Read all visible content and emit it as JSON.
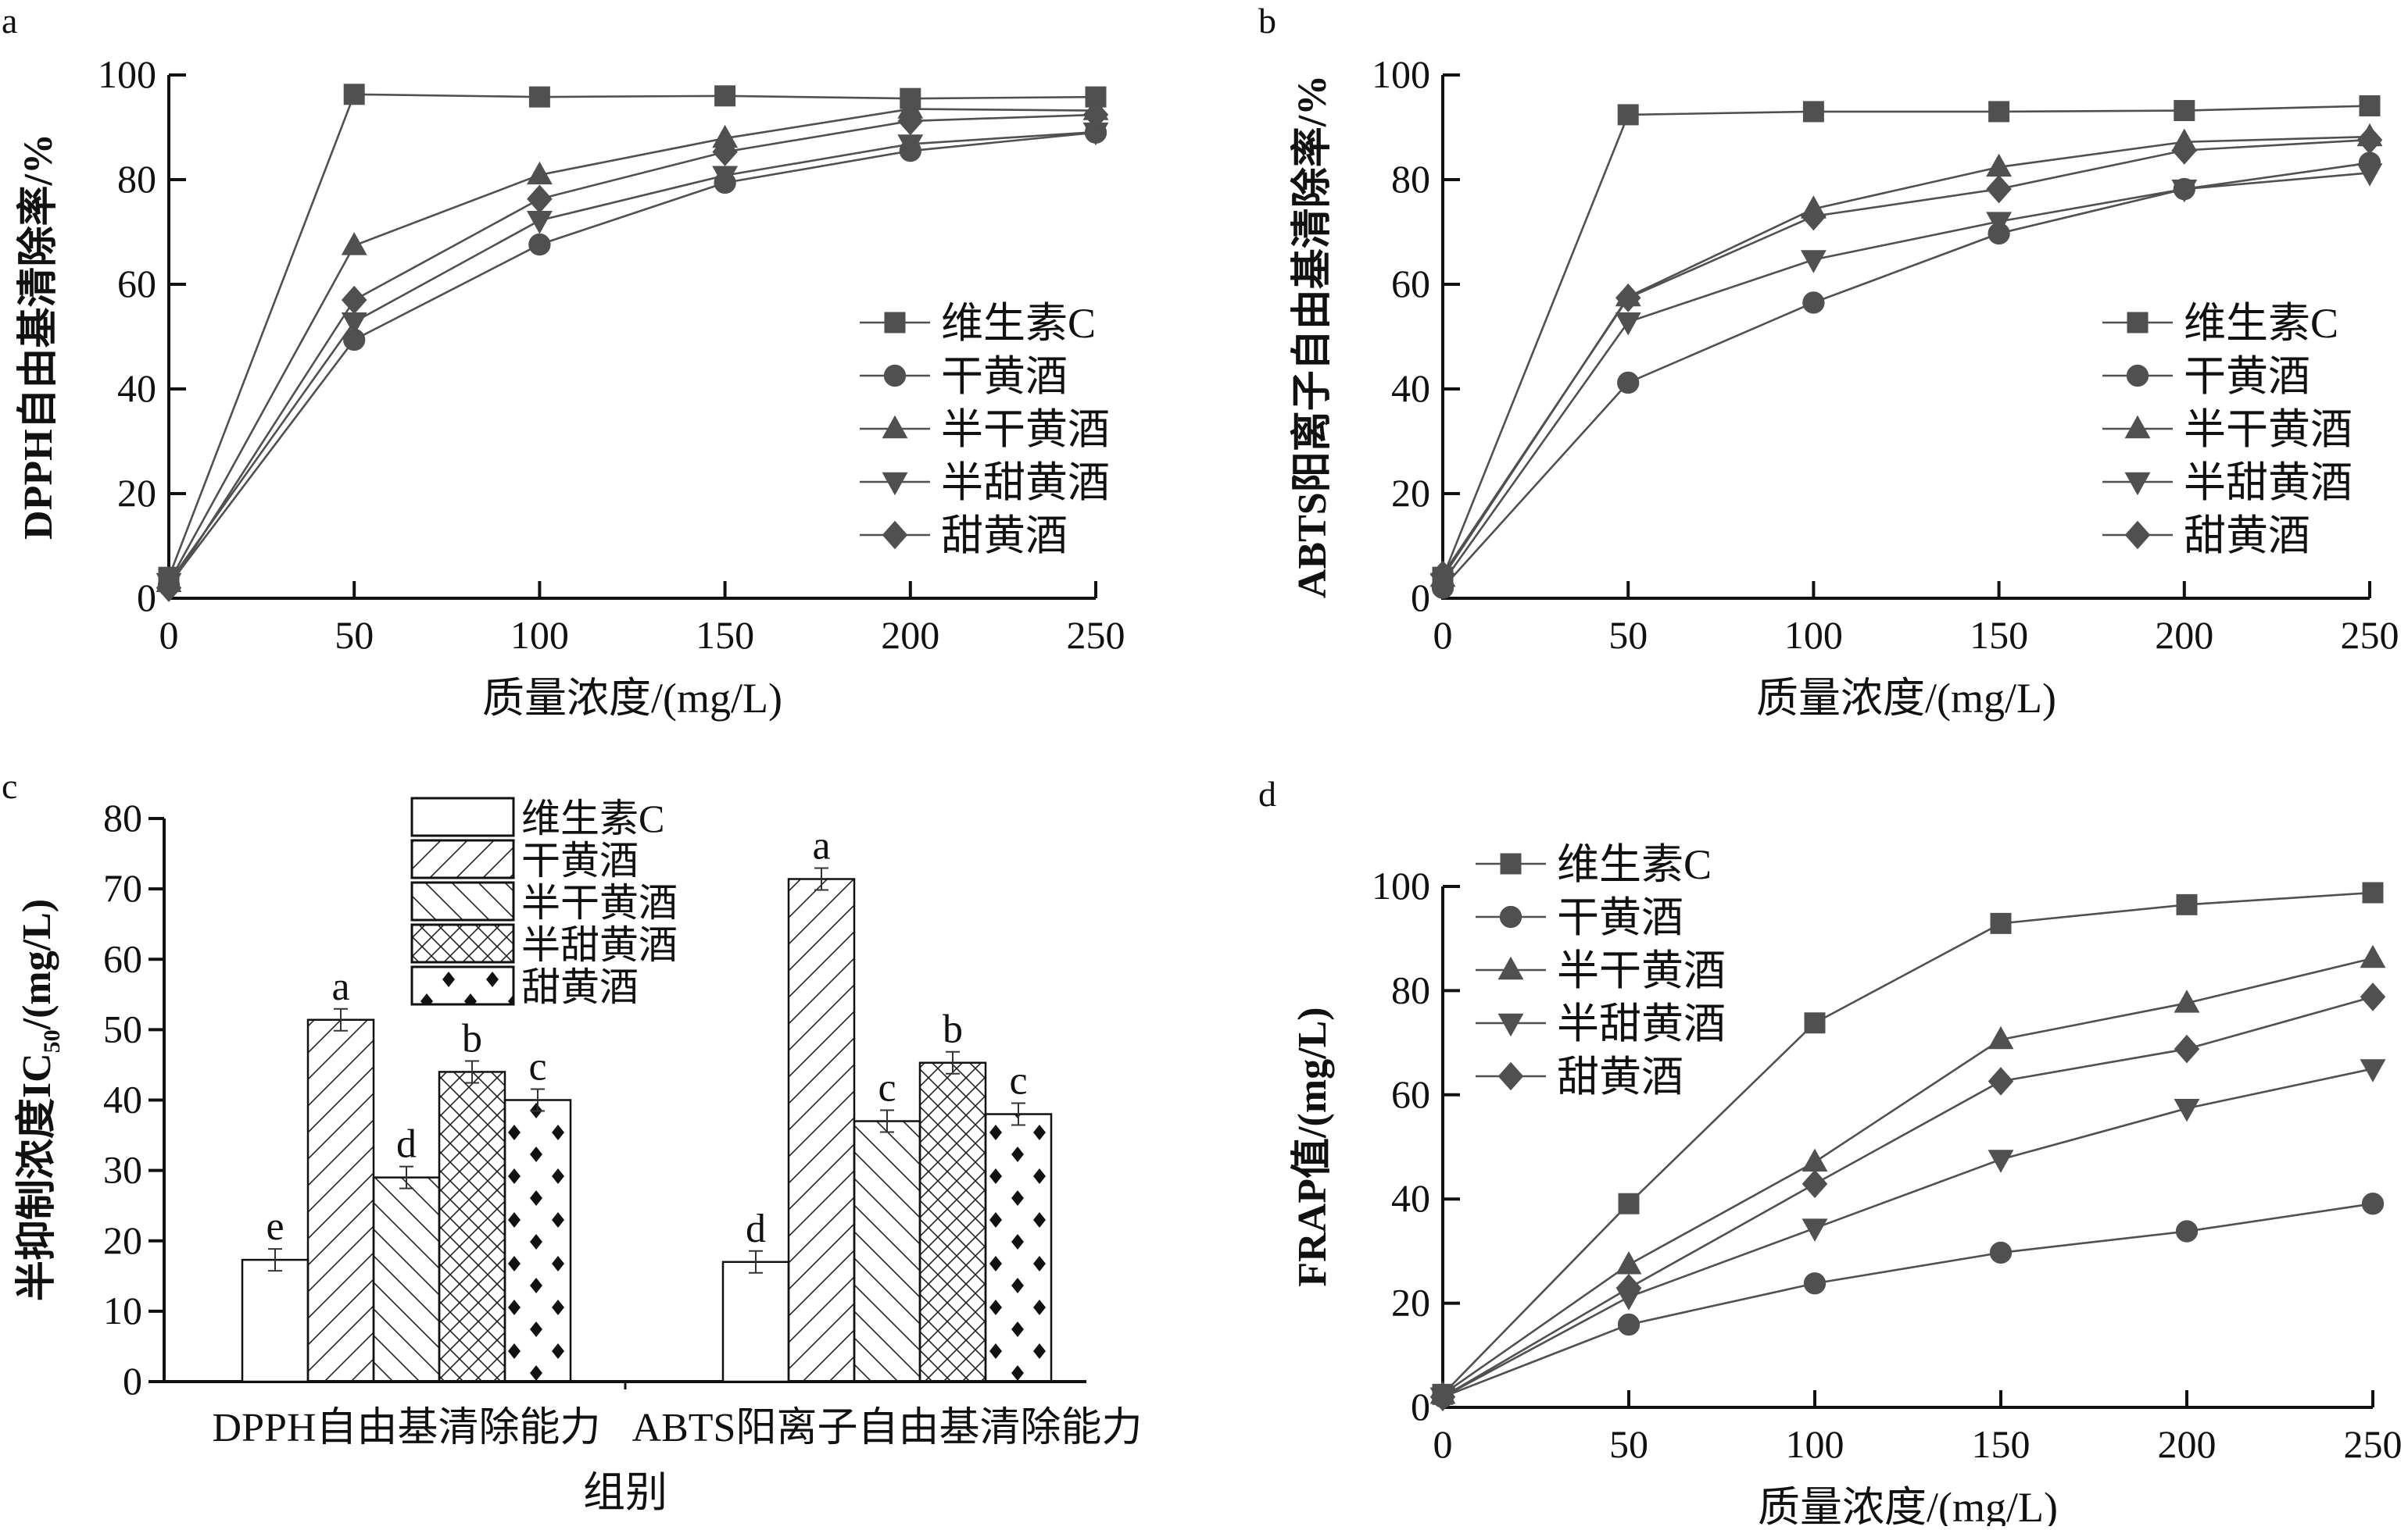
{
  "series_names": [
    "维生素C",
    "干黄酒",
    "半干黄酒",
    "半甜黄酒",
    "甜黄酒"
  ],
  "markers": [
    "square",
    "circle",
    "triangle-up",
    "triangle-down",
    "diamond"
  ],
  "colors": {
    "line": "#505050",
    "marker": "#505050",
    "axis": "#111111"
  },
  "chart_data": [
    {
      "panel": "a",
      "type": "line",
      "title": "",
      "xlabel": "质量浓度/(mg/L)",
      "ylabel": "DPPH自由基清除率/%",
      "x": [
        0,
        50,
        100,
        150,
        200,
        250
      ],
      "xticks": [
        "0",
        "50",
        "100",
        "150",
        "200",
        "250"
      ],
      "yticks": [
        "0",
        "20",
        "40",
        "60",
        "80",
        "100"
      ],
      "xlim": [
        0,
        250
      ],
      "ylim": [
        0,
        100
      ],
      "legend": "center-right",
      "series": [
        {
          "name": "维生素C",
          "values": [
            4.0,
            96.3,
            95.8,
            96.0,
            95.5,
            95.8
          ]
        },
        {
          "name": "干黄酒",
          "values": [
            2.5,
            49.4,
            67.6,
            79.4,
            85.5,
            89.0
          ]
        },
        {
          "name": "半干黄酒",
          "values": [
            3.0,
            67.4,
            80.9,
            87.9,
            93.5,
            93.2
          ]
        },
        {
          "name": "半甜黄酒",
          "values": [
            3.0,
            52.8,
            72.2,
            80.8,
            86.8,
            89.1
          ]
        },
        {
          "name": "甜黄酒",
          "values": [
            2.0,
            57.0,
            76.3,
            85.3,
            91.2,
            92.4
          ]
        }
      ]
    },
    {
      "panel": "b",
      "type": "line",
      "title": "",
      "xlabel": "质量浓度/(mg/L)",
      "ylabel": "ABTS阳离子自由基清除率/%",
      "x": [
        0,
        50,
        100,
        150,
        200,
        250
      ],
      "xticks": [
        "0",
        "50",
        "100",
        "150",
        "200",
        "250"
      ],
      "yticks": [
        "0",
        "20",
        "40",
        "60",
        "80",
        "100"
      ],
      "xlim": [
        0,
        250
      ],
      "ylim": [
        0,
        100
      ],
      "legend": "center-right",
      "series": [
        {
          "name": "维生素C",
          "values": [
            4.0,
            92.4,
            93.0,
            93.0,
            93.2,
            94.1
          ]
        },
        {
          "name": "干黄酒",
          "values": [
            2.0,
            41.2,
            56.5,
            69.7,
            78.2,
            83.2
          ]
        },
        {
          "name": "半干黄酒",
          "values": [
            4.0,
            57.6,
            74.4,
            82.4,
            87.2,
            88.2
          ]
        },
        {
          "name": "半甜黄酒",
          "values": [
            3.0,
            52.8,
            64.7,
            72.0,
            78.2,
            81.3
          ]
        },
        {
          "name": "甜黄酒",
          "values": [
            4.5,
            57.4,
            73.0,
            78.2,
            85.6,
            87.6
          ]
        }
      ]
    },
    {
      "panel": "c",
      "type": "bar",
      "title": "",
      "xlabel": "组别",
      "ylabel": "半抑制浓度IC50/(mg/L)",
      "ylabel_main": "半抑制浓度IC",
      "ylabel_sub": "50",
      "ylabel_tail": "/(mg/L)",
      "categories": [
        "DPPH自由基清除能力",
        "ABTS阳离子自由基清除能力"
      ],
      "yticks": [
        "0",
        "10",
        "20",
        "30",
        "40",
        "50",
        "60",
        "70",
        "80"
      ],
      "ylim": [
        0,
        80
      ],
      "legend": "top-center",
      "series": [
        {
          "name": "维生素C",
          "values": [
            17.3,
            17.0
          ],
          "labels": [
            "e",
            "d"
          ]
        },
        {
          "name": "干黄酒",
          "values": [
            51.4,
            71.4
          ],
          "labels": [
            "a",
            "a"
          ]
        },
        {
          "name": "半干黄酒",
          "values": [
            29.0,
            37.0
          ],
          "labels": [
            "d",
            "c"
          ]
        },
        {
          "name": "半甜黄酒",
          "values": [
            44.0,
            45.3
          ],
          "labels": [
            "b",
            "b"
          ]
        },
        {
          "name": "甜黄酒",
          "values": [
            40.0,
            38.0
          ],
          "labels": [
            "c",
            "c"
          ]
        }
      ]
    },
    {
      "panel": "d",
      "type": "line",
      "title": "",
      "xlabel": "质量浓度/(mg/L)",
      "ylabel": "FRAP值/(mg/L)",
      "x": [
        0,
        50,
        100,
        150,
        200,
        250
      ],
      "xticks": [
        "0",
        "50",
        "100",
        "150",
        "200",
        "250"
      ],
      "yticks": [
        "0",
        "20",
        "40",
        "60",
        "80",
        "100"
      ],
      "xlim": [
        0,
        250
      ],
      "ylim": [
        0,
        100
      ],
      "legend": "top-left",
      "series": [
        {
          "name": "维生素C",
          "values": [
            2.5,
            39.1,
            73.8,
            92.9,
            96.5,
            98.8
          ]
        },
        {
          "name": "干黄酒",
          "values": [
            2.0,
            15.9,
            23.8,
            29.7,
            33.8,
            39.1
          ]
        },
        {
          "name": "半干黄酒",
          "values": [
            2.5,
            27.4,
            47.1,
            70.6,
            77.6,
            86.2
          ]
        },
        {
          "name": "半甜黄酒",
          "values": [
            2.0,
            21.2,
            34.4,
            47.6,
            57.4,
            65.0
          ]
        },
        {
          "name": "甜黄酒",
          "values": [
            2.0,
            22.9,
            42.9,
            62.6,
            68.8,
            78.8
          ]
        }
      ]
    }
  ]
}
